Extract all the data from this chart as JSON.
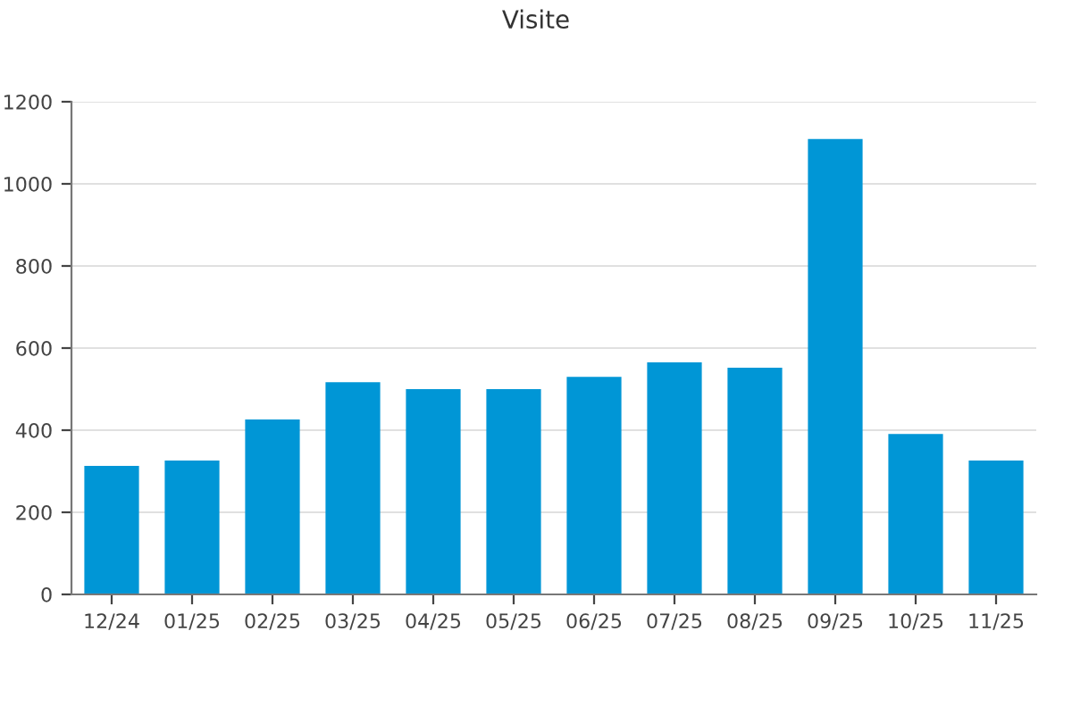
{
  "chart_data": {
    "type": "bar",
    "title": "Visite",
    "categories": [
      "12/24",
      "01/25",
      "02/25",
      "03/25",
      "04/25",
      "05/25",
      "06/25",
      "07/25",
      "08/25",
      "09/25",
      "10/25",
      "11/25"
    ],
    "values": [
      313,
      326,
      426,
      517,
      500,
      500,
      530,
      565,
      552,
      1109,
      391,
      326
    ],
    "color": "#0096d6",
    "ylim": [
      0,
      1200
    ],
    "yticks": [
      0,
      200,
      400,
      600,
      800,
      1000,
      1200
    ],
    "grid": "y"
  }
}
